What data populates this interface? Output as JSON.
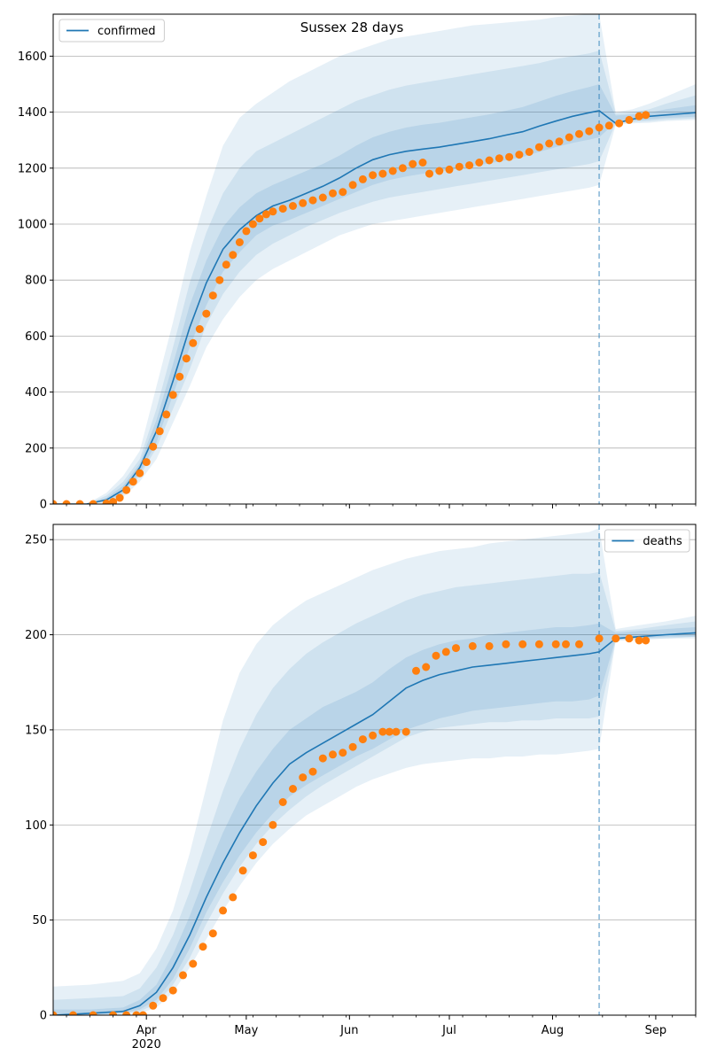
{
  "figure": {
    "title": "Sussex 28 days"
  },
  "chart_data": [
    {
      "type": "line",
      "title": "Sussex 28 days",
      "xlabel": "",
      "ylabel": "",
      "xlim": [
        "2020-03-04",
        "2020-09-13"
      ],
      "ylim": [
        0,
        1750
      ],
      "yticks": [
        0,
        200,
        400,
        600,
        800,
        1000,
        1200,
        1400,
        1600
      ],
      "xticks": [
        {
          "date": "2020-04-01",
          "label": "Apr"
        },
        {
          "date": "2020-05-01",
          "label": "May"
        },
        {
          "date": "2020-06-01",
          "label": "Jun"
        },
        {
          "date": "2020-07-01",
          "label": "Jul"
        },
        {
          "date": "2020-08-01",
          "label": "Aug"
        },
        {
          "date": "2020-09-01",
          "label": "Sep"
        }
      ],
      "year_label": {
        "date": "2020-04-01",
        "label": "2020"
      },
      "show_xtick_labels": false,
      "grid": "horizontal",
      "legend": {
        "position": "top-left",
        "entries": [
          "confirmed"
        ]
      },
      "forecast_start": "2020-08-15",
      "line_color": "#1f77b4",
      "marker_color": "#ff7f0e",
      "model": {
        "name": "confirmed",
        "x": [
          "2020-03-04",
          "2020-03-14",
          "2020-03-20",
          "2020-03-25",
          "2020-03-30",
          "2020-04-04",
          "2020-04-09",
          "2020-04-14",
          "2020-04-19",
          "2020-04-24",
          "2020-04-29",
          "2020-05-04",
          "2020-05-09",
          "2020-05-14",
          "2020-05-19",
          "2020-05-24",
          "2020-05-29",
          "2020-06-03",
          "2020-06-08",
          "2020-06-13",
          "2020-06-18",
          "2020-06-23",
          "2020-06-28",
          "2020-07-03",
          "2020-07-08",
          "2020-07-13",
          "2020-07-18",
          "2020-07-23",
          "2020-07-28",
          "2020-08-02",
          "2020-08-07",
          "2020-08-12",
          "2020-08-15",
          "2020-08-20",
          "2020-08-25",
          "2020-08-30",
          "2020-09-04",
          "2020-09-13"
        ],
        "y": [
          0,
          0,
          15,
          50,
          130,
          260,
          440,
          630,
          790,
          910,
          980,
          1030,
          1065,
          1085,
          1110,
          1135,
          1165,
          1200,
          1230,
          1248,
          1260,
          1268,
          1275,
          1285,
          1295,
          1305,
          1318,
          1330,
          1350,
          1368,
          1385,
          1398,
          1405,
          1360,
          1375,
          1385,
          1390,
          1398
        ],
        "bands": [
          {
            "opacity": 0.11,
            "lower": [
              0,
              0,
              4,
              25,
              80,
              160,
              290,
              420,
              560,
              660,
              740,
              800,
              840,
              870,
              900,
              930,
              960,
              980,
              1000,
              1010,
              1020,
              1030,
              1040,
              1050,
              1060,
              1070,
              1080,
              1090,
              1100,
              1110,
              1120,
              1130,
              1140,
              1355,
              1360,
              1362,
              1368,
              1372
            ],
            "upper": [
              0,
              0,
              40,
              100,
              190,
              420,
              650,
              900,
              1100,
              1280,
              1380,
              1430,
              1470,
              1510,
              1540,
              1570,
              1600,
              1620,
              1640,
              1660,
              1670,
              1680,
              1690,
              1700,
              1710,
              1715,
              1720,
              1725,
              1730,
              1740,
              1745,
              1750,
              1750,
              1400,
              1410,
              1430,
              1455,
              1500
            ]
          },
          {
            "opacity": 0.11,
            "lower": [
              0,
              0,
              8,
              35,
              100,
              200,
              340,
              480,
              640,
              750,
              830,
              890,
              930,
              960,
              990,
              1015,
              1040,
              1060,
              1080,
              1095,
              1105,
              1115,
              1125,
              1135,
              1145,
              1155,
              1165,
              1175,
              1185,
              1195,
              1205,
              1215,
              1225,
              1360,
              1365,
              1368,
              1373,
              1378
            ],
            "upper": [
              0,
              0,
              30,
              80,
              160,
              340,
              560,
              790,
              970,
              1110,
              1200,
              1260,
              1290,
              1320,
              1350,
              1380,
              1410,
              1440,
              1460,
              1480,
              1495,
              1505,
              1515,
              1525,
              1535,
              1545,
              1555,
              1565,
              1575,
              1590,
              1600,
              1610,
              1620,
              1395,
              1400,
              1410,
              1430,
              1460
            ]
          },
          {
            "opacity": 0.12,
            "lower": [
              0,
              0,
              10,
              40,
              110,
              220,
              390,
              560,
              710,
              830,
              900,
              960,
              995,
              1015,
              1040,
              1065,
              1090,
              1115,
              1140,
              1158,
              1170,
              1180,
              1188,
              1197,
              1207,
              1217,
              1228,
              1240,
              1258,
              1275,
              1290,
              1302,
              1310,
              1364,
              1369,
              1374,
              1379,
              1384
            ],
            "upper": [
              0,
              0,
              22,
              65,
              145,
              300,
              500,
              710,
              870,
              990,
              1060,
              1110,
              1140,
              1165,
              1190,
              1215,
              1245,
              1280,
              1310,
              1330,
              1345,
              1355,
              1362,
              1372,
              1382,
              1392,
              1405,
              1418,
              1438,
              1458,
              1475,
              1490,
              1500,
              1388,
              1392,
              1398,
              1410,
              1425
            ]
          }
        ]
      },
      "observed": {
        "x": [
          "2020-03-04",
          "2020-03-08",
          "2020-03-12",
          "2020-03-16",
          "2020-03-20",
          "2020-03-22",
          "2020-03-24",
          "2020-03-26",
          "2020-03-28",
          "2020-03-30",
          "2020-04-01",
          "2020-04-03",
          "2020-04-05",
          "2020-04-07",
          "2020-04-09",
          "2020-04-11",
          "2020-04-13",
          "2020-04-15",
          "2020-04-17",
          "2020-04-19",
          "2020-04-21",
          "2020-04-23",
          "2020-04-25",
          "2020-04-27",
          "2020-04-29",
          "2020-05-01",
          "2020-05-03",
          "2020-05-05",
          "2020-05-07",
          "2020-05-09",
          "2020-05-12",
          "2020-05-15",
          "2020-05-18",
          "2020-05-21",
          "2020-05-24",
          "2020-05-27",
          "2020-05-30",
          "2020-06-02",
          "2020-06-05",
          "2020-06-08",
          "2020-06-11",
          "2020-06-14",
          "2020-06-17",
          "2020-06-20",
          "2020-06-23",
          "2020-06-25",
          "2020-06-28",
          "2020-07-01",
          "2020-07-04",
          "2020-07-07",
          "2020-07-10",
          "2020-07-13",
          "2020-07-16",
          "2020-07-19",
          "2020-07-22",
          "2020-07-25",
          "2020-07-28",
          "2020-07-31",
          "2020-08-03",
          "2020-08-06",
          "2020-08-09",
          "2020-08-12",
          "2020-08-15",
          "2020-08-18",
          "2020-08-21",
          "2020-08-24",
          "2020-08-27",
          "2020-08-29"
        ],
        "y": [
          0,
          0,
          0,
          0,
          2,
          8,
          22,
          50,
          80,
          110,
          150,
          205,
          260,
          320,
          390,
          455,
          520,
          575,
          625,
          680,
          745,
          800,
          855,
          890,
          935,
          975,
          1000,
          1020,
          1035,
          1045,
          1055,
          1065,
          1075,
          1085,
          1095,
          1110,
          1115,
          1140,
          1160,
          1175,
          1180,
          1190,
          1200,
          1215,
          1220,
          1180,
          1190,
          1195,
          1205,
          1210,
          1220,
          1228,
          1235,
          1240,
          1248,
          1258,
          1275,
          1288,
          1295,
          1310,
          1322,
          1332,
          1345,
          1352,
          1360,
          1372,
          1385,
          1390
        ]
      }
    },
    {
      "type": "line",
      "title": "",
      "xlabel": "",
      "ylabel": "",
      "xlim": [
        "2020-03-04",
        "2020-09-13"
      ],
      "ylim": [
        0,
        258
      ],
      "yticks": [
        0,
        50,
        100,
        150,
        200,
        250
      ],
      "xticks": [
        {
          "date": "2020-04-01",
          "label": "Apr"
        },
        {
          "date": "2020-05-01",
          "label": "May"
        },
        {
          "date": "2020-06-01",
          "label": "Jun"
        },
        {
          "date": "2020-07-01",
          "label": "Jul"
        },
        {
          "date": "2020-08-01",
          "label": "Aug"
        },
        {
          "date": "2020-09-01",
          "label": "Sep"
        }
      ],
      "year_label": {
        "date": "2020-04-01",
        "label": "2020"
      },
      "show_xtick_labels": true,
      "grid": "horizontal",
      "legend": {
        "position": "top-right",
        "entries": [
          "deaths"
        ]
      },
      "forecast_start": "2020-08-15",
      "line_color": "#1f77b4",
      "marker_color": "#ff7f0e",
      "model": {
        "name": "deaths",
        "x": [
          "2020-03-04",
          "2020-03-15",
          "2020-03-25",
          "2020-03-30",
          "2020-04-04",
          "2020-04-09",
          "2020-04-14",
          "2020-04-19",
          "2020-04-24",
          "2020-04-29",
          "2020-05-04",
          "2020-05-09",
          "2020-05-14",
          "2020-05-19",
          "2020-05-24",
          "2020-05-29",
          "2020-06-03",
          "2020-06-08",
          "2020-06-13",
          "2020-06-18",
          "2020-06-23",
          "2020-06-28",
          "2020-07-03",
          "2020-07-08",
          "2020-07-13",
          "2020-07-18",
          "2020-07-23",
          "2020-07-28",
          "2020-08-02",
          "2020-08-07",
          "2020-08-12",
          "2020-08-15",
          "2020-08-20",
          "2020-08-27",
          "2020-09-04",
          "2020-09-13"
        ],
        "y": [
          0,
          1,
          2,
          5,
          12,
          25,
          42,
          62,
          80,
          96,
          110,
          122,
          132,
          138,
          143,
          148,
          153,
          158,
          165,
          172,
          176,
          179,
          181,
          183,
          184,
          185,
          186,
          187,
          188,
          189,
          190,
          191,
          198,
          199,
          200,
          201
        ],
        "bands": [
          {
            "opacity": 0.11,
            "lower": [
              0,
              0,
              0,
              1,
              4,
              12,
              25,
              40,
              55,
              68,
              80,
              90,
              98,
              105,
              110,
              115,
              120,
              124,
              127,
              130,
              132,
              133,
              134,
              135,
              135,
              136,
              136,
              137,
              137,
              138,
              139,
              140,
              197,
              197,
              198,
              198
            ],
            "upper": [
              15,
              16,
              18,
              22,
              35,
              55,
              85,
              120,
              155,
              180,
              195,
              205,
              212,
              218,
              222,
              226,
              230,
              234,
              237,
              240,
              242,
              244,
              245,
              246,
              248,
              249,
              250,
              251,
              252,
              253,
              254,
              256,
              203,
              205,
              207,
              210
            ]
          },
          {
            "opacity": 0.11,
            "lower": [
              0,
              0,
              1,
              2,
              6,
              16,
              30,
              48,
              64,
              78,
              90,
              100,
              108,
              115,
              121,
              126,
              131,
              136,
              141,
              146,
              149,
              151,
              152,
              153,
              154,
              154,
              155,
              155,
              156,
              156,
              156,
              157,
              197,
              198,
              198,
              199
            ],
            "upper": [
              8,
              9,
              10,
              14,
              25,
              42,
              65,
              92,
              118,
              140,
              158,
              172,
              182,
              190,
              196,
              201,
              206,
              210,
              214,
              218,
              221,
              223,
              225,
              226,
              227,
              228,
              229,
              230,
              231,
              232,
              232,
              233,
              202,
              203,
              205,
              207
            ]
          },
          {
            "opacity": 0.12,
            "lower": [
              0,
              0,
              1,
              3,
              8,
              19,
              35,
              54,
              70,
              84,
              96,
              106,
              115,
              121,
              126,
              131,
              136,
              140,
              145,
              150,
              153,
              156,
              158,
              160,
              161,
              162,
              163,
              164,
              165,
              165,
              166,
              168,
              198,
              198,
              199,
              199
            ],
            "upper": [
              3,
              3,
              4,
              8,
              16,
              32,
              52,
              75,
              96,
              114,
              128,
              140,
              150,
              156,
              162,
              166,
              170,
              175,
              182,
              188,
              192,
              195,
              197,
              198,
              200,
              201,
              202,
              203,
              204,
              204,
              205,
              206,
              201,
              202,
              203,
              204
            ]
          }
        ]
      },
      "observed": {
        "x": [
          "2020-03-04",
          "2020-03-10",
          "2020-03-16",
          "2020-03-22",
          "2020-03-26",
          "2020-03-29",
          "2020-03-31",
          "2020-04-03",
          "2020-04-06",
          "2020-04-09",
          "2020-04-12",
          "2020-04-15",
          "2020-04-18",
          "2020-04-21",
          "2020-04-24",
          "2020-04-27",
          "2020-04-30",
          "2020-05-03",
          "2020-05-06",
          "2020-05-09",
          "2020-05-12",
          "2020-05-15",
          "2020-05-18",
          "2020-05-21",
          "2020-05-24",
          "2020-05-27",
          "2020-05-30",
          "2020-06-02",
          "2020-06-05",
          "2020-06-08",
          "2020-06-11",
          "2020-06-13",
          "2020-06-15",
          "2020-06-18",
          "2020-06-21",
          "2020-06-24",
          "2020-06-27",
          "2020-06-30",
          "2020-07-03",
          "2020-07-08",
          "2020-07-13",
          "2020-07-18",
          "2020-07-23",
          "2020-07-28",
          "2020-08-02",
          "2020-08-05",
          "2020-08-09",
          "2020-08-15",
          "2020-08-20",
          "2020-08-24",
          "2020-08-27",
          "2020-08-29"
        ],
        "y": [
          0,
          0,
          0,
          0,
          0,
          0,
          0,
          5,
          9,
          13,
          21,
          27,
          36,
          43,
          55,
          62,
          76,
          84,
          91,
          100,
          112,
          119,
          125,
          128,
          135,
          137,
          138,
          141,
          145,
          147,
          149,
          149,
          149,
          149,
          181,
          183,
          189,
          191,
          193,
          194,
          194,
          195,
          195,
          195,
          195,
          195,
          195,
          198,
          198,
          198,
          197,
          197
        ]
      }
    }
  ]
}
